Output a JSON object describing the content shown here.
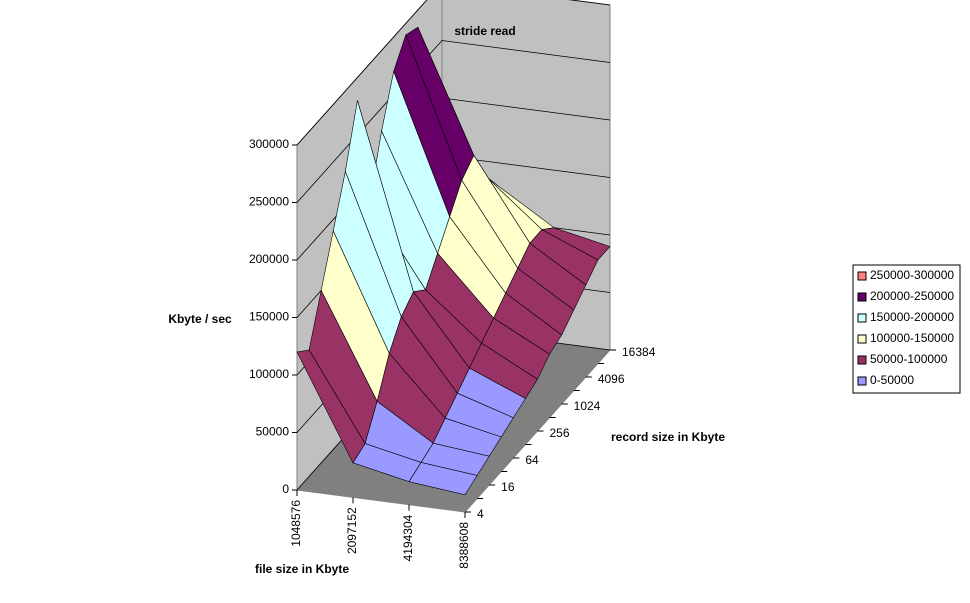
{
  "chart_data": {
    "type": "surface",
    "title": "stride read",
    "x_label": "file size in Kbyte",
    "y_label": "record size in Kbyte",
    "z_label": "Kbyte / sec",
    "categories": [
      "1048576",
      "2097152",
      "4194304",
      "8388608"
    ],
    "y_categories": [
      "4",
      null,
      "16",
      null,
      "64",
      null,
      "256",
      null,
      "1024",
      null,
      "4096",
      null,
      "16384"
    ],
    "z": [
      [
        120000,
        110000,
        150000,
        190000,
        230000,
        280000,
        180000,
        230000,
        270000,
        290000,
        285000,
        200000,
        160000
      ],
      [
        30000,
        35000,
        60000,
        90000,
        110000,
        120000,
        110000,
        130000,
        150000,
        170000,
        180000,
        150000,
        130000
      ],
      [
        20000,
        25000,
        30000,
        40000,
        50000,
        60000,
        70000,
        80000,
        90000,
        100000,
        110000,
        110000,
        100000
      ],
      [
        15000,
        20000,
        25000,
        30000,
        35000,
        40000,
        45000,
        55000,
        60000,
        70000,
        80000,
        90000,
        90000
      ]
    ],
    "zlim": [
      0,
      300000
    ],
    "zticks": [
      0,
      50000,
      100000,
      150000,
      200000,
      250000,
      300000
    ],
    "grid": true,
    "legend_position": "right",
    "bands": [
      {
        "name": "0-50000",
        "color": "#9999ff"
      },
      {
        "name": "50000-100000",
        "color": "#993366"
      },
      {
        "name": "100000-150000",
        "color": "#ffffcc"
      },
      {
        "name": "150000-200000",
        "color": "#ccffff"
      },
      {
        "name": "200000-250000",
        "color": "#660066"
      },
      {
        "name": "250000-300000",
        "color": "#ff8080"
      }
    ]
  }
}
